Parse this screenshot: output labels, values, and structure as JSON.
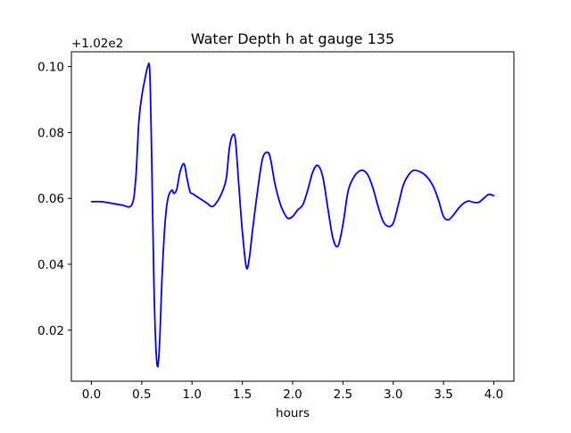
{
  "chart_data": {
    "type": "line",
    "title": "Water Depth h at gauge 135",
    "xlabel": "hours",
    "ylabel": "",
    "y_offset_label": "+1.02e2",
    "y_offset": 102,
    "xlim": [
      -0.2,
      4.2
    ],
    "ylim": [
      0.0045,
      0.1045
    ],
    "x_ticks": [
      0.0,
      0.5,
      1.0,
      1.5,
      2.0,
      2.5,
      3.0,
      3.5,
      4.0
    ],
    "x_tick_labels": [
      "0.0",
      "0.5",
      "1.0",
      "1.5",
      "2.0",
      "2.5",
      "3.0",
      "3.5",
      "4.0"
    ],
    "y_ticks": [
      0.02,
      0.04,
      0.06,
      0.08,
      0.1
    ],
    "y_tick_labels": [
      "0.02",
      "0.04",
      "0.06",
      "0.08",
      "0.10"
    ],
    "grid": false,
    "series_color": "#0000ff",
    "series": [
      {
        "x": [
          0.0,
          0.1,
          0.2,
          0.3,
          0.4,
          0.44,
          0.47,
          0.5,
          0.53,
          0.56,
          0.58,
          0.6,
          0.62,
          0.64,
          0.66,
          0.68,
          0.7,
          0.73,
          0.76,
          0.8,
          0.82,
          0.85,
          0.88,
          0.92,
          0.95,
          0.98,
          1.0,
          1.05,
          1.1,
          1.15,
          1.2,
          1.25,
          1.3,
          1.34,
          1.37,
          1.4,
          1.43,
          1.46,
          1.5,
          1.54,
          1.57,
          1.6,
          1.65,
          1.7,
          1.75,
          1.78,
          1.82,
          1.86,
          1.9,
          1.95,
          2.0,
          2.05,
          2.1,
          2.15,
          2.2,
          2.25,
          2.3,
          2.35,
          2.4,
          2.45,
          2.5,
          2.55,
          2.6,
          2.65,
          2.7,
          2.75,
          2.8,
          2.85,
          2.9,
          2.95,
          3.0,
          3.05,
          3.1,
          3.15,
          3.2,
          3.25,
          3.3,
          3.35,
          3.4,
          3.45,
          3.5,
          3.55,
          3.6,
          3.65,
          3.7,
          3.75,
          3.8,
          3.85,
          3.9,
          3.95,
          4.0
        ],
        "y": [
          0.059,
          0.059,
          0.0585,
          0.058,
          0.058,
          0.066,
          0.083,
          0.091,
          0.096,
          0.1,
          0.098,
          0.07,
          0.035,
          0.015,
          0.009,
          0.018,
          0.035,
          0.052,
          0.06,
          0.0625,
          0.0615,
          0.063,
          0.068,
          0.0705,
          0.066,
          0.062,
          0.0615,
          0.0605,
          0.0595,
          0.0585,
          0.0575,
          0.059,
          0.062,
          0.066,
          0.075,
          0.079,
          0.078,
          0.066,
          0.05,
          0.039,
          0.042,
          0.05,
          0.062,
          0.072,
          0.074,
          0.072,
          0.065,
          0.06,
          0.0565,
          0.054,
          0.0545,
          0.0565,
          0.058,
          0.0625,
          0.068,
          0.07,
          0.0665,
          0.057,
          0.048,
          0.0455,
          0.052,
          0.062,
          0.066,
          0.068,
          0.0685,
          0.067,
          0.063,
          0.0575,
          0.053,
          0.0515,
          0.0525,
          0.058,
          0.064,
          0.067,
          0.0685,
          0.0683,
          0.0675,
          0.066,
          0.0635,
          0.0595,
          0.0545,
          0.0535,
          0.055,
          0.057,
          0.0585,
          0.0592,
          0.0588,
          0.0588,
          0.06,
          0.0612,
          0.0608
        ]
      }
    ]
  }
}
